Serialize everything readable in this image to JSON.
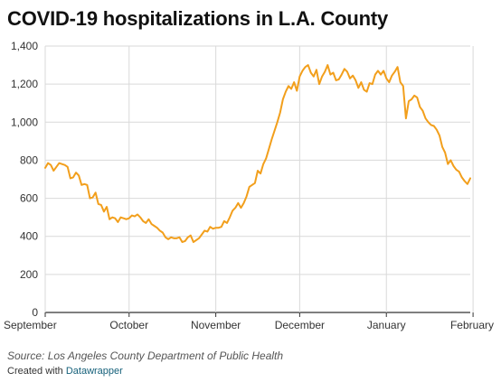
{
  "title": "COVID-19 hospitalizations in L.A. County",
  "source": "Source: Los Angeles County Department of Public Health",
  "credit_prefix": "Created with",
  "credit_link": "Datawrapper",
  "colors": {
    "line": "#f29f1c",
    "grid": "#d9d9d9",
    "baseline": "#333333",
    "link": "#15607a"
  },
  "chart_data": {
    "type": "line",
    "title": "COVID-19 hospitalizations in L.A. County",
    "xlabel": "",
    "ylabel": "",
    "grid": true,
    "xlim": [
      0,
      152
    ],
    "ylim": [
      0,
      1400
    ],
    "y_ticks": [
      0,
      200,
      400,
      600,
      800,
      1000,
      1200,
      1400
    ],
    "y_tick_labels": [
      "0",
      "200",
      "400",
      "600",
      "800",
      "1,000",
      "1,200",
      "1,400"
    ],
    "x_ticks": [
      {
        "pos": 0,
        "label": "September"
      },
      {
        "pos": 30,
        "label": "October"
      },
      {
        "pos": 61,
        "label": "November"
      },
      {
        "pos": 91,
        "label": "December"
      },
      {
        "pos": 122,
        "label": "January"
      },
      {
        "pos": 153,
        "label": "February"
      }
    ],
    "x_unit": "days since September 1",
    "series": [
      {
        "name": "",
        "x": [
          0,
          1,
          2,
          3,
          4,
          5,
          6,
          7,
          8,
          9,
          10,
          11,
          12,
          13,
          14,
          15,
          16,
          17,
          18,
          19,
          20,
          21,
          22,
          23,
          24,
          25,
          26,
          27,
          28,
          29,
          30,
          31,
          32,
          33,
          34,
          35,
          36,
          37,
          38,
          39,
          40,
          41,
          42,
          43,
          44,
          45,
          46,
          47,
          48,
          49,
          50,
          51,
          52,
          53,
          54,
          55,
          56,
          57,
          58,
          59,
          60,
          61,
          62,
          63,
          64,
          65,
          66,
          67,
          68,
          69,
          70,
          71,
          72,
          73,
          74,
          75,
          76,
          77,
          78,
          79,
          80,
          81,
          82,
          83,
          84,
          85,
          86,
          87,
          88,
          89,
          90,
          91,
          92,
          93,
          94,
          95,
          96,
          97,
          98,
          99,
          100,
          101,
          102,
          103,
          104,
          105,
          106,
          107,
          108,
          109,
          110,
          111,
          112,
          113,
          114,
          115,
          116,
          117,
          118,
          119,
          120,
          121,
          122,
          123,
          124,
          125,
          126,
          127,
          128,
          129,
          130,
          131,
          132,
          133,
          134,
          135,
          136,
          137,
          138,
          139,
          140,
          141,
          142,
          143,
          144,
          145,
          146,
          147,
          148,
          149,
          150,
          151,
          152
        ],
        "values": [
          760,
          785,
          775,
          745,
          765,
          785,
          780,
          775,
          765,
          705,
          710,
          735,
          720,
          670,
          675,
          670,
          600,
          605,
          630,
          570,
          565,
          530,
          555,
          490,
          500,
          495,
          475,
          500,
          495,
          490,
          495,
          510,
          505,
          515,
          500,
          480,
          470,
          490,
          465,
          455,
          445,
          430,
          420,
          395,
          385,
          395,
          390,
          390,
          395,
          370,
          375,
          395,
          405,
          370,
          380,
          390,
          410,
          430,
          425,
          450,
          440,
          445,
          445,
          450,
          480,
          470,
          500,
          535,
          550,
          575,
          550,
          575,
          610,
          660,
          670,
          680,
          745,
          730,
          780,
          810,
          860,
          910,
          955,
          1000,
          1050,
          1120,
          1160,
          1190,
          1175,
          1210,
          1165,
          1240,
          1270,
          1290,
          1300,
          1260,
          1240,
          1275,
          1200,
          1240,
          1265,
          1300,
          1250,
          1260,
          1220,
          1225,
          1250,
          1280,
          1265,
          1230,
          1245,
          1220,
          1180,
          1210,
          1170,
          1160,
          1205,
          1200,
          1250,
          1270,
          1250,
          1270,
          1230,
          1210,
          1245,
          1265,
          1290,
          1210,
          1190,
          1020,
          1110,
          1120,
          1140,
          1130,
          1080,
          1060,
          1020,
          1000,
          985,
          980,
          960,
          930,
          870,
          840,
          780,
          800,
          770,
          750,
          740,
          710,
          690,
          675,
          705
        ]
      }
    ]
  }
}
